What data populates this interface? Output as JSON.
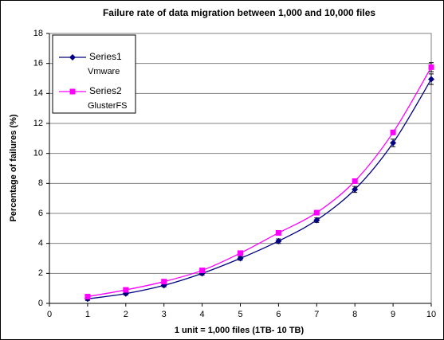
{
  "chart_data": {
    "type": "line",
    "title": "Failure rate of data migration between 1,000 and 10,000 files",
    "x_label": "1 unit = 1,000 files (1TB- 10 TB)",
    "y_label": "Percentage of failures (%)",
    "x": [
      1,
      2,
      3,
      4,
      5,
      6,
      7,
      8,
      9,
      10
    ],
    "series": [
      {
        "name": "Series1",
        "label": "Vmware",
        "color": "#000080",
        "marker": "diamond",
        "values": [
          0.3,
          0.65,
          1.2,
          2.0,
          3.0,
          4.15,
          5.55,
          7.6,
          10.7,
          14.95
        ],
        "errors": [
          0.1,
          0.1,
          0.1,
          0.12,
          0.12,
          0.15,
          0.15,
          0.2,
          0.25,
          0.35
        ]
      },
      {
        "name": "Series2",
        "label": "GlusterFS",
        "color": "#ff00ff",
        "marker": "square",
        "values": [
          0.45,
          0.9,
          1.45,
          2.2,
          3.35,
          4.7,
          6.05,
          8.15,
          11.4,
          15.75
        ],
        "errors": [
          0.08,
          0.08,
          0.08,
          0.1,
          0.1,
          0.1,
          0.12,
          0.12,
          0.15,
          0.3
        ]
      }
    ],
    "xlim": [
      0,
      10
    ],
    "xticks": [
      0,
      1,
      2,
      3,
      4,
      5,
      6,
      7,
      8,
      9,
      10
    ],
    "ylim": [
      0,
      18
    ],
    "yticks": [
      0,
      2,
      4,
      6,
      8,
      10,
      12,
      14,
      16,
      18
    ],
    "grid": true,
    "legend": "upper left"
  }
}
